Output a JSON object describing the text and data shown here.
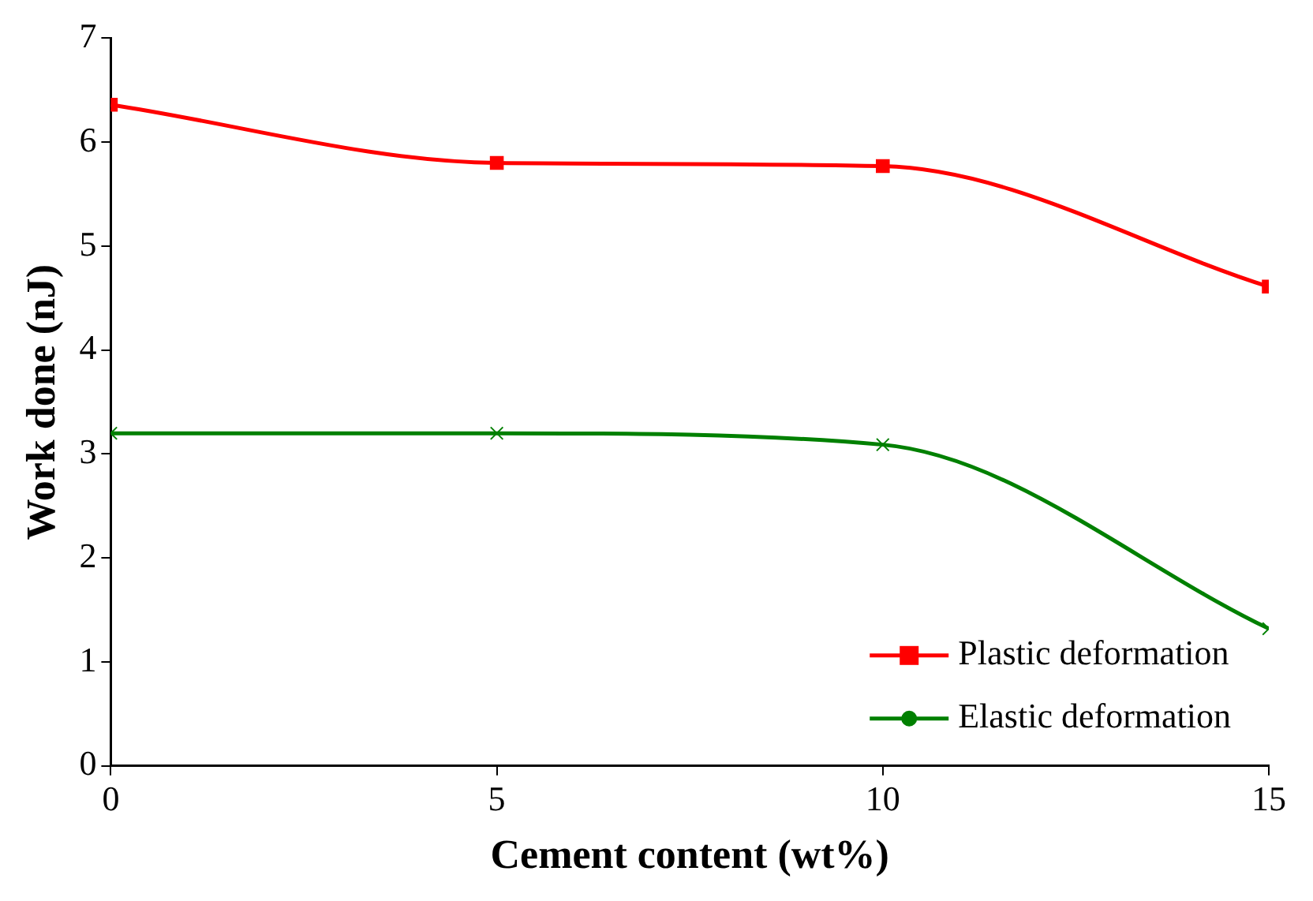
{
  "chart_data": {
    "type": "line",
    "xlabel": "Cement content (wt%)",
    "ylabel": "Work done (nJ)",
    "x": [
      0,
      5,
      10,
      15
    ],
    "series": [
      {
        "name": "Plastic deformation",
        "color": "#ff0000",
        "marker": "square",
        "values": [
          6.36,
          5.8,
          5.77,
          4.61
        ]
      },
      {
        "name": "Elastic deformation",
        "color": "#008000",
        "marker": "cross",
        "values": [
          3.2,
          3.2,
          3.09,
          1.32
        ]
      }
    ],
    "xlim": [
      0,
      15
    ],
    "xticks": [
      0,
      5,
      10,
      15
    ],
    "ylim": [
      0,
      7
    ],
    "yticks": [
      0,
      1,
      2,
      3,
      4,
      5,
      6,
      7
    ],
    "grid": false,
    "legend": "bottom right",
    "line_style": "solid"
  }
}
